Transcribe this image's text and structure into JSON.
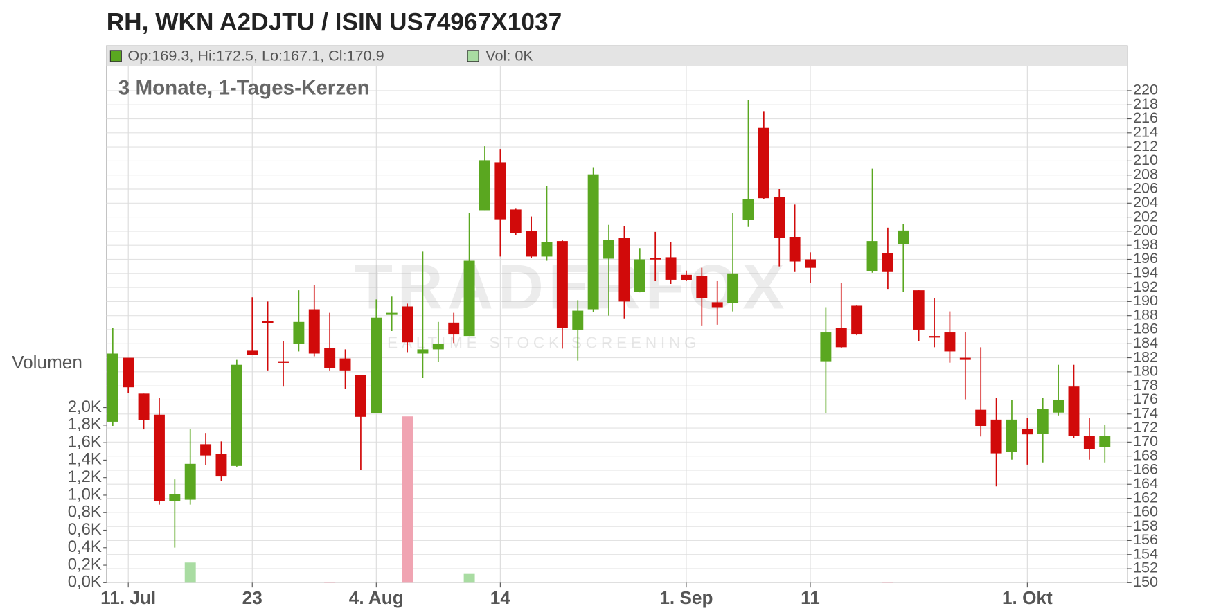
{
  "chart_data": {
    "type": "candlestick",
    "title": "RH, WKN A2DJTU / ISIN US74967X1037",
    "subtitle": "3 Monate, 1-Tages-Kerzen",
    "ohlc_text": "Op:169.3, Hi:172.5, Lo:167.1, Cl:170.9",
    "volume_text": "Vol: 0K",
    "volume_axis_label": "Volumen",
    "watermark": "TRADERFOX",
    "watermark_tagline": "REALTIME STOCK SCREENING",
    "categories": [
      null,
      "11. Jul",
      null,
      null,
      null,
      null,
      null,
      null,
      null,
      "23",
      null,
      null,
      null,
      null,
      null,
      null,
      null,
      "4. Aug",
      null,
      null,
      null,
      null,
      null,
      null,
      null,
      "14",
      null,
      null,
      null,
      null,
      null,
      null,
      null,
      null,
      null,
      null,
      null,
      "1. Sep",
      null,
      null,
      null,
      null,
      null,
      null,
      null,
      "11",
      null,
      null,
      null,
      null,
      null,
      null,
      null,
      null,
      null,
      null,
      null,
      null,
      null,
      "1. Okt",
      null,
      null,
      null,
      null,
      null
    ],
    "open": [
      172.9,
      182.0,
      176.9,
      173.9,
      161.6,
      161.8,
      169.7,
      168.3,
      166.6,
      183.0,
      187.2,
      181.5,
      184.0,
      188.9,
      183.4,
      181.9,
      179.5,
      174.1,
      188.1,
      189.3,
      182.6,
      183.2,
      187.0,
      185.1,
      203.0,
      209.8,
      203.1,
      200.0,
      196.4,
      198.6,
      186.0,
      188.9,
      196.1,
      199.1,
      191.4,
      196.2,
      196.3,
      193.8,
      193.6,
      189.9,
      189.8,
      201.6,
      214.7,
      204.9,
      199.2,
      196.0,
      181.5,
      186.2,
      189.4,
      194.3,
      196.9,
      198.2,
      191.6,
      185.1,
      185.6,
      182.0,
      174.6,
      173.2,
      168.6,
      171.9,
      171.2,
      174.2,
      177.9,
      170.9,
      169.3
    ],
    "high": [
      186.2,
      182.0,
      176.9,
      176.3,
      164.7,
      171.9,
      171.3,
      170.1,
      181.7,
      190.6,
      190.0,
      184.4,
      191.6,
      192.4,
      188.4,
      183.2,
      179.5,
      190.3,
      190.7,
      189.7,
      197.1,
      187.1,
      188.4,
      202.6,
      212.1,
      211.7,
      203.2,
      202.1,
      206.4,
      198.8,
      190.2,
      209.1,
      200.9,
      200.7,
      197.6,
      199.9,
      198.5,
      194.4,
      194.8,
      192.9,
      202.6,
      218.7,
      217.1,
      206.0,
      203.8,
      197.0,
      189.2,
      192.6,
      189.5,
      208.9,
      200.5,
      201.0,
      191.6,
      190.5,
      188.6,
      185.6,
      183.5,
      176.3,
      176.0,
      173.4,
      176.3,
      181.0,
      181.0,
      173.4,
      172.5
    ],
    "low": [
      172.3,
      177.0,
      171.8,
      161.1,
      155.0,
      161.1,
      166.7,
      164.5,
      166.5,
      182.4,
      180.2,
      177.9,
      182.9,
      182.2,
      180.2,
      177.6,
      166.0,
      174.1,
      185.8,
      182.8,
      179.1,
      181.4,
      184.1,
      185.1,
      203.0,
      196.4,
      199.4,
      196.2,
      195.8,
      183.3,
      181.6,
      188.5,
      188.0,
      187.6,
      191.3,
      192.9,
      192.5,
      192.9,
      186.6,
      186.7,
      188.6,
      200.6,
      204.6,
      195.0,
      194.2,
      192.7,
      174.1,
      183.4,
      185.2,
      194.1,
      191.7,
      191.4,
      184.4,
      183.5,
      181.3,
      176.1,
      170.8,
      163.7,
      167.5,
      166.8,
      167.1,
      173.8,
      170.6,
      167.5,
      167.1
    ],
    "close": [
      182.6,
      177.8,
      173.1,
      161.6,
      162.6,
      166.9,
      168.1,
      165.1,
      181.0,
      182.4,
      187.0,
      181.3,
      187.1,
      182.6,
      180.5,
      180.2,
      173.6,
      187.7,
      188.4,
      184.2,
      183.2,
      184.0,
      185.4,
      195.8,
      210.1,
      201.7,
      199.7,
      196.4,
      198.5,
      186.2,
      188.7,
      208.1,
      198.8,
      190.0,
      196.0,
      196.0,
      193.1,
      193.0,
      190.5,
      189.2,
      194.0,
      204.6,
      204.7,
      199.1,
      195.7,
      194.8,
      185.6,
      183.5,
      185.4,
      198.6,
      194.2,
      200.1,
      186.0,
      184.9,
      182.9,
      181.7,
      172.3,
      168.4,
      173.2,
      171.1,
      174.7,
      176.0,
      170.9,
      169.0,
      170.9
    ],
    "volume": [
      0,
      0,
      0,
      0,
      0,
      0.23,
      0,
      0,
      0,
      0,
      0,
      0,
      0,
      0,
      0.01,
      0,
      0,
      0,
      0,
      1.9,
      0,
      0,
      0,
      0.1,
      0,
      0,
      0,
      0,
      0,
      0,
      0,
      0,
      0,
      0,
      0,
      0,
      0,
      0,
      0,
      0,
      0,
      0,
      0,
      0,
      0,
      0,
      0,
      0,
      0,
      0,
      0.01,
      0,
      0,
      0,
      0,
      0,
      0,
      0,
      0,
      0,
      0,
      0,
      0,
      0,
      0
    ],
    "up_color": "#5aa720",
    "down_color": "#d10a0a",
    "volume_up_color": "#a9dca2",
    "volume_down_color": "#f0a4b2",
    "ylim": [
      150,
      220
    ],
    "yticks": [
      150,
      152,
      154,
      156,
      158,
      160,
      162,
      164,
      166,
      168,
      170,
      172,
      174,
      176,
      178,
      180,
      182,
      184,
      186,
      188,
      190,
      192,
      194,
      196,
      198,
      200,
      202,
      204,
      206,
      208,
      210,
      212,
      214,
      216,
      218,
      220
    ],
    "y2lim": [
      0,
      2.0
    ],
    "y2ticks": [
      {
        "value": 0,
        "label": "0,0K"
      },
      {
        "value": 0.2,
        "label": "0,2K"
      },
      {
        "value": 0.4,
        "label": "0,4K"
      },
      {
        "value": 0.6,
        "label": "0,6K"
      },
      {
        "value": 0.8,
        "label": "0,8K"
      },
      {
        "value": 1.0,
        "label": "1,0K"
      },
      {
        "value": 1.2,
        "label": "1,2K"
      },
      {
        "value": 1.4,
        "label": "1,4K"
      },
      {
        "value": 1.6,
        "label": "1,6K"
      },
      {
        "value": 1.8,
        "label": "1,8K"
      },
      {
        "value": 2.0,
        "label": "2,0K"
      }
    ],
    "grid": true
  }
}
